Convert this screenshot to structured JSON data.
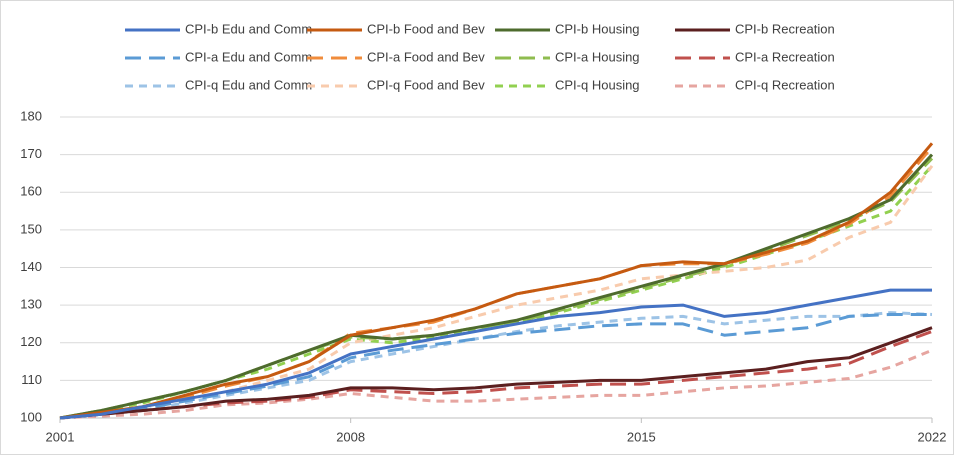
{
  "chart_data": {
    "type": "line",
    "x": [
      2001,
      2002,
      2003,
      2004,
      2005,
      2006,
      2007,
      2008,
      2009,
      2010,
      2011,
      2012,
      2013,
      2014,
      2015,
      2016,
      2017,
      2018,
      2019,
      2020,
      2021,
      2022
    ],
    "xlim": [
      2001,
      2022
    ],
    "xticks": [
      2001,
      2008,
      2015,
      2022
    ],
    "ylim": [
      100,
      180
    ],
    "yticks": [
      100,
      110,
      120,
      130,
      140,
      150,
      160,
      170,
      180
    ],
    "grid": true,
    "legend": "top",
    "series": [
      {
        "name": "CPI-b Edu and Comm",
        "color": "#4472c4",
        "dash": "solid",
        "values": [
          100,
          101,
          103,
          105,
          107,
          109,
          112,
          117,
          119,
          121,
          123,
          125,
          127,
          128,
          129.5,
          130,
          127,
          128,
          130,
          132,
          134,
          134
        ]
      },
      {
        "name": "CPI-b Food and Bev",
        "color": "#c55a11",
        "dash": "solid",
        "values": [
          100,
          101.5,
          103,
          106,
          109,
          111,
          115,
          122,
          124,
          126,
          129,
          133,
          135,
          137,
          140.5,
          141.5,
          141,
          144,
          147,
          152,
          160,
          173
        ]
      },
      {
        "name": "CPI-b Housing",
        "color": "#4e6b2d",
        "dash": "solid",
        "values": [
          100,
          102,
          104.5,
          107,
          110,
          114,
          118,
          122,
          121,
          122,
          124,
          126,
          129,
          132,
          135,
          138,
          141,
          145,
          149,
          153,
          158,
          170
        ]
      },
      {
        "name": "CPI-b Recreation",
        "color": "#5b1f1f",
        "dash": "solid",
        "values": [
          100,
          101,
          102,
          103,
          104.5,
          105,
          106,
          108,
          108,
          107.5,
          108,
          109,
          109.5,
          110,
          110,
          111,
          112,
          113,
          115,
          116,
          120,
          124
        ]
      },
      {
        "name": "CPI-a Edu and Comm",
        "color": "#5b9bd5",
        "dash": "long",
        "values": [
          100,
          101,
          102.5,
          104.5,
          106.5,
          108.5,
          111,
          116,
          118,
          119.5,
          121,
          122.5,
          123.5,
          124.5,
          125,
          125,
          122,
          123,
          124,
          127,
          127.5,
          127.5
        ]
      },
      {
        "name": "CPI-a Food and Bev",
        "color": "#f08c3c",
        "dash": "long",
        "values": [
          100,
          101.5,
          103,
          105.5,
          108.5,
          111,
          115,
          122.5,
          124,
          125.5,
          129,
          133,
          135,
          137,
          140.5,
          141,
          141,
          143.5,
          146.5,
          151.5,
          159,
          172
        ]
      },
      {
        "name": "CPI-a Housing",
        "color": "#8fbc4f",
        "dash": "long",
        "values": [
          100,
          102,
          104.5,
          107,
          110,
          114,
          118,
          121.5,
          121,
          122,
          124,
          125.5,
          128.5,
          131.5,
          134.5,
          137.5,
          140.5,
          144.5,
          148.5,
          152.5,
          157.5,
          169
        ]
      },
      {
        "name": "CPI-a Recreation",
        "color": "#c0504d",
        "dash": "long",
        "values": [
          100,
          101,
          102,
          103,
          104,
          104.5,
          105.5,
          107.5,
          107,
          106.5,
          107,
          108,
          108.5,
          109,
          109,
          110,
          111,
          112,
          113,
          114.5,
          119,
          123
        ]
      },
      {
        "name": "CPI-q Edu and Comm",
        "color": "#9dc3e6",
        "dash": "short",
        "values": [
          100,
          101,
          102,
          104,
          106,
          108,
          110,
          115,
          117,
          119,
          121,
          123,
          124.5,
          125.5,
          126.5,
          127,
          125,
          126,
          127,
          127,
          128,
          127.5
        ]
      },
      {
        "name": "CPI-q Food and Bev",
        "color": "#f8cbad",
        "dash": "short",
        "values": [
          100,
          101,
          103,
          105,
          107,
          110,
          113,
          120,
          122,
          124,
          127,
          130,
          132,
          134,
          137,
          138,
          139,
          140,
          142,
          148,
          152,
          167
        ]
      },
      {
        "name": "CPI-q Housing",
        "color": "#92d050",
        "dash": "short",
        "values": [
          100,
          102,
          104,
          107,
          110,
          113,
          117,
          121,
          120,
          121.5,
          123.5,
          125.5,
          128,
          131,
          134,
          137,
          140,
          143.5,
          147,
          151,
          155,
          167
        ]
      },
      {
        "name": "CPI-q Recreation",
        "color": "#e6a5a0",
        "dash": "short",
        "values": [
          100,
          100.5,
          101,
          102,
          103.5,
          104,
          105,
          106.5,
          105.5,
          104.5,
          104.5,
          105,
          105.5,
          106,
          106,
          107,
          108,
          108.5,
          109.5,
          110.5,
          113.5,
          118
        ]
      }
    ]
  }
}
